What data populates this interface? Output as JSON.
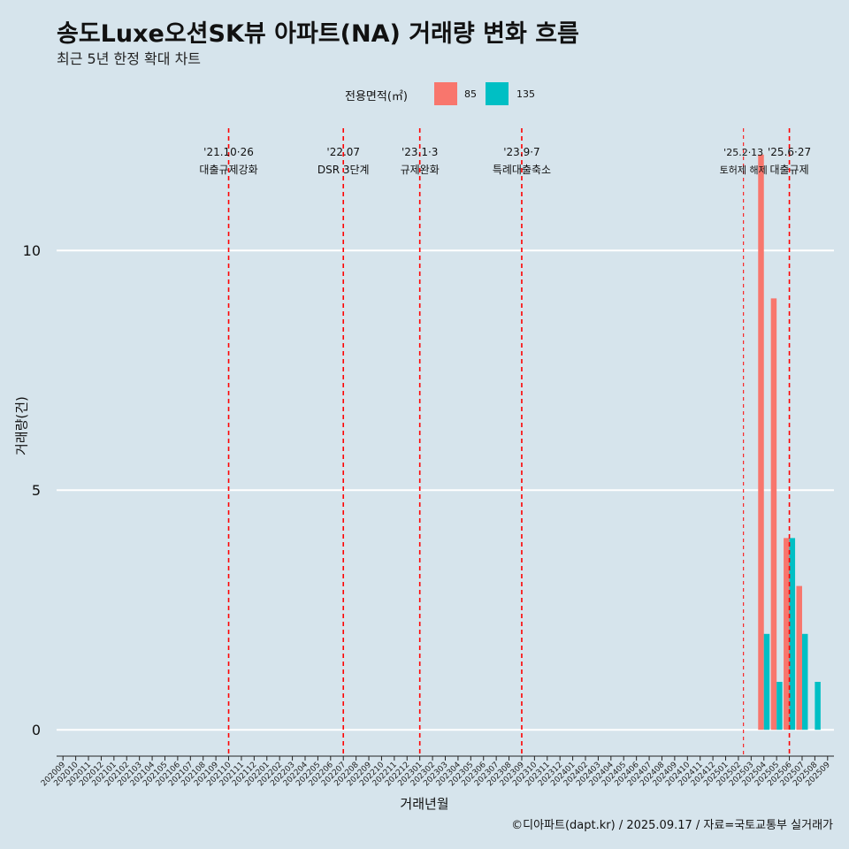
{
  "title": "송도Luxe오션SK뷰 아파트(NA) 거래량 변화 흐름",
  "subtitle": "최근 5년 한정 확대 차트",
  "caption": "©디아파트(dapt.kr) / 2025.09.17 / 자료=국토교통부 실거래가",
  "colors": {
    "series85": "#f8766d",
    "series135": "#00bfc4",
    "event": "#ff0000",
    "background": "#d6e4ec",
    "grid": "#ffffff"
  },
  "chart_data": {
    "type": "bar",
    "xlabel": "거래년월",
    "ylabel": "거래량(건)",
    "ylim": [
      -0.55,
      12.55
    ],
    "yticks": [
      0,
      5,
      10
    ],
    "legend": {
      "title": "전용면적(㎡)",
      "position": "top"
    },
    "categories": [
      "202009",
      "202010",
      "202011",
      "202012",
      "202101",
      "202102",
      "202103",
      "202104",
      "202105",
      "202106",
      "202107",
      "202108",
      "202109",
      "202110",
      "202111",
      "202112",
      "202201",
      "202202",
      "202203",
      "202204",
      "202205",
      "202206",
      "202207",
      "202208",
      "202209",
      "202210",
      "202211",
      "202212",
      "202301",
      "202302",
      "202303",
      "202304",
      "202305",
      "202306",
      "202307",
      "202308",
      "202309",
      "202310",
      "202311",
      "202312",
      "202401",
      "202402",
      "202403",
      "202404",
      "202405",
      "202406",
      "202407",
      "202408",
      "202409",
      "202410",
      "202411",
      "202412",
      "202501",
      "202502",
      "202503",
      "202504",
      "202505",
      "202506",
      "202507",
      "202508",
      "202509"
    ],
    "series": [
      {
        "name": "85",
        "values": [
          0,
          0,
          0,
          0,
          0,
          0,
          0,
          0,
          0,
          0,
          0,
          0,
          0,
          0,
          0,
          0,
          0,
          0,
          0,
          0,
          0,
          0,
          0,
          0,
          0,
          0,
          0,
          0,
          0,
          0,
          0,
          0,
          0,
          0,
          0,
          0,
          0,
          0,
          0,
          0,
          0,
          0,
          0,
          0,
          0,
          0,
          0,
          0,
          0,
          0,
          0,
          0,
          0,
          0,
          0,
          12,
          9,
          4,
          3,
          0,
          0
        ]
      },
      {
        "name": "135",
        "values": [
          0,
          0,
          0,
          0,
          0,
          0,
          0,
          0,
          0,
          0,
          0,
          0,
          0,
          0,
          0,
          0,
          0,
          0,
          0,
          0,
          0,
          0,
          0,
          0,
          0,
          0,
          0,
          0,
          0,
          0,
          0,
          0,
          0,
          0,
          0,
          0,
          0,
          0,
          0,
          0,
          0,
          0,
          0,
          0,
          0,
          0,
          0,
          0,
          0,
          0,
          0,
          0,
          0,
          0,
          0,
          2,
          1,
          4,
          2,
          1,
          0
        ]
      }
    ],
    "events": [
      {
        "month": "202110",
        "offset": 0.0,
        "date": "'21.10·26",
        "label": "대출규제강화",
        "style": "thick"
      },
      {
        "month": "202207",
        "offset": 0.0,
        "date": "'22.07",
        "label": "DSR 3단계",
        "style": "thick"
      },
      {
        "month": "202301",
        "offset": 0.0,
        "date": "'23.1·3",
        "label": "규제완화",
        "style": "thick"
      },
      {
        "month": "202309",
        "offset": 0.0,
        "date": "'23.9·7",
        "label": "특례대출축소",
        "style": "thick"
      },
      {
        "month": "202502",
        "offset": 0.4,
        "date": "'25.2·13",
        "label": "토허제 해제",
        "style": "thin"
      },
      {
        "month": "202506",
        "offset": 0.0,
        "date": "'25.6·27",
        "label": "대출규제",
        "style": "thick"
      }
    ]
  }
}
